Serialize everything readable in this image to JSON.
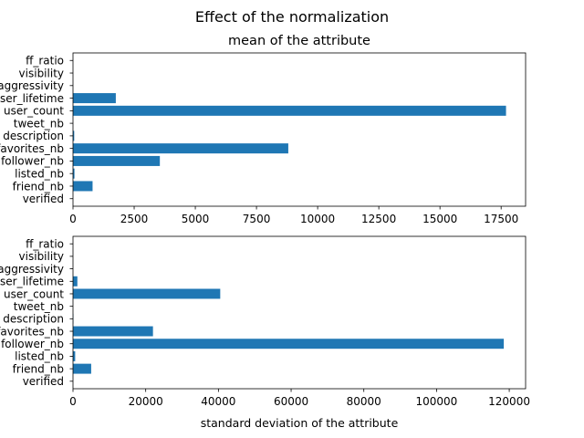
{
  "figure": {
    "suptitle": "Effect of the normalization"
  },
  "chart_data": [
    {
      "type": "bar",
      "orientation": "horizontal",
      "title": "mean of the attribute",
      "xlabel": "",
      "ylabel": "",
      "categories": [
        "verified",
        "friend_nb",
        "listed_nb",
        "follower_nb",
        "favorites_nb",
        "description",
        "tweet_nb",
        "user_count",
        "user_lifetime",
        "aggressivity",
        "visibility",
        "ff_ratio"
      ],
      "category_labels": [
        "verified",
        "friend_nb",
        "listed_nb",
        "follower_nb",
        "favorites_nb",
        "description",
        "tweet_nb",
        "user_count",
        "user_lifetime",
        "aggressivity",
        "visibility",
        "ff_ratio"
      ],
      "values": [
        0,
        800,
        60,
        3550,
        8800,
        50,
        0,
        17700,
        1750,
        0,
        0,
        0
      ],
      "xlim": [
        0,
        18500
      ],
      "xticks": [
        0,
        2500,
        5000,
        7500,
        10000,
        12500,
        15000,
        17500
      ],
      "xtick_labels": [
        "0",
        "2500",
        "5000",
        "7500",
        "10000",
        "12500",
        "15000",
        "17500"
      ],
      "color": "#1f77b4",
      "grid": false
    },
    {
      "type": "bar",
      "orientation": "horizontal",
      "title": "",
      "xlabel": "standard deviation of the attribute",
      "ylabel": "",
      "categories": [
        "verified",
        "friend_nb",
        "listed_nb",
        "follower_nb",
        "favorites_nb",
        "description",
        "tweet_nb",
        "user_count",
        "user_lifetime",
        "aggressivity",
        "visibility",
        "ff_ratio"
      ],
      "category_labels": [
        "verified",
        "friend_nb",
        "listed_nb",
        "follower_nb",
        "favorites_nb",
        "description",
        "tweet_nb",
        "user_count",
        "user_lifetime",
        "aggressivity",
        "visibility",
        "ff_ratio"
      ],
      "values": [
        0,
        5000,
        600,
        118500,
        22000,
        100,
        0,
        40500,
        1200,
        0,
        0,
        0
      ],
      "xlim": [
        0,
        124500
      ],
      "xticks": [
        0,
        20000,
        40000,
        60000,
        80000,
        100000,
        120000
      ],
      "xtick_labels": [
        "0",
        "20000",
        "40000",
        "60000",
        "80000",
        "100000",
        "120000"
      ],
      "color": "#1f77b4",
      "grid": false
    }
  ]
}
